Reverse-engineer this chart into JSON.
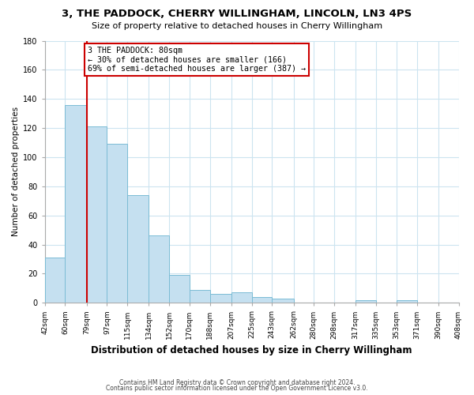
{
  "title": "3, THE PADDOCK, CHERRY WILLINGHAM, LINCOLN, LN3 4PS",
  "subtitle": "Size of property relative to detached houses in Cherry Willingham",
  "xlabel": "Distribution of detached houses by size in Cherry Willingham",
  "ylabel": "Number of detached properties",
  "bin_labels": [
    "42sqm",
    "60sqm",
    "79sqm",
    "97sqm",
    "115sqm",
    "134sqm",
    "152sqm",
    "170sqm",
    "188sqm",
    "207sqm",
    "225sqm",
    "243sqm",
    "262sqm",
    "280sqm",
    "298sqm",
    "317sqm",
    "335sqm",
    "353sqm",
    "371sqm",
    "390sqm",
    "408sqm"
  ],
  "bar_heights": [
    31,
    136,
    121,
    109,
    74,
    46,
    19,
    9,
    6,
    7,
    4,
    3,
    0,
    0,
    0,
    2,
    0,
    2,
    0,
    0,
    0
  ],
  "bar_color": "#c5e0f0",
  "bar_edge_color": "#7bbcd5",
  "vline_x": 79,
  "vline_color": "#cc0000",
  "annotation_title": "3 THE PADDOCK: 80sqm",
  "annotation_line1": "← 30% of detached houses are smaller (166)",
  "annotation_line2": "69% of semi-detached houses are larger (387) →",
  "annotation_box_color": "#ffffff",
  "annotation_box_edge": "#cc0000",
  "ylim": [
    0,
    180
  ],
  "yticks": [
    0,
    20,
    40,
    60,
    80,
    100,
    120,
    140,
    160,
    180
  ],
  "grid_color": "#cce4f0",
  "footer1": "Contains HM Land Registry data © Crown copyright and database right 2024.",
  "footer2": "Contains public sector information licensed under the Open Government Licence v3.0.",
  "title_fontsize": 9.5,
  "subtitle_fontsize": 8,
  "xlabel_fontsize": 8.5,
  "ylabel_fontsize": 7.5,
  "tick_fontsize": 6.5,
  "footer_fontsize": 5.5
}
